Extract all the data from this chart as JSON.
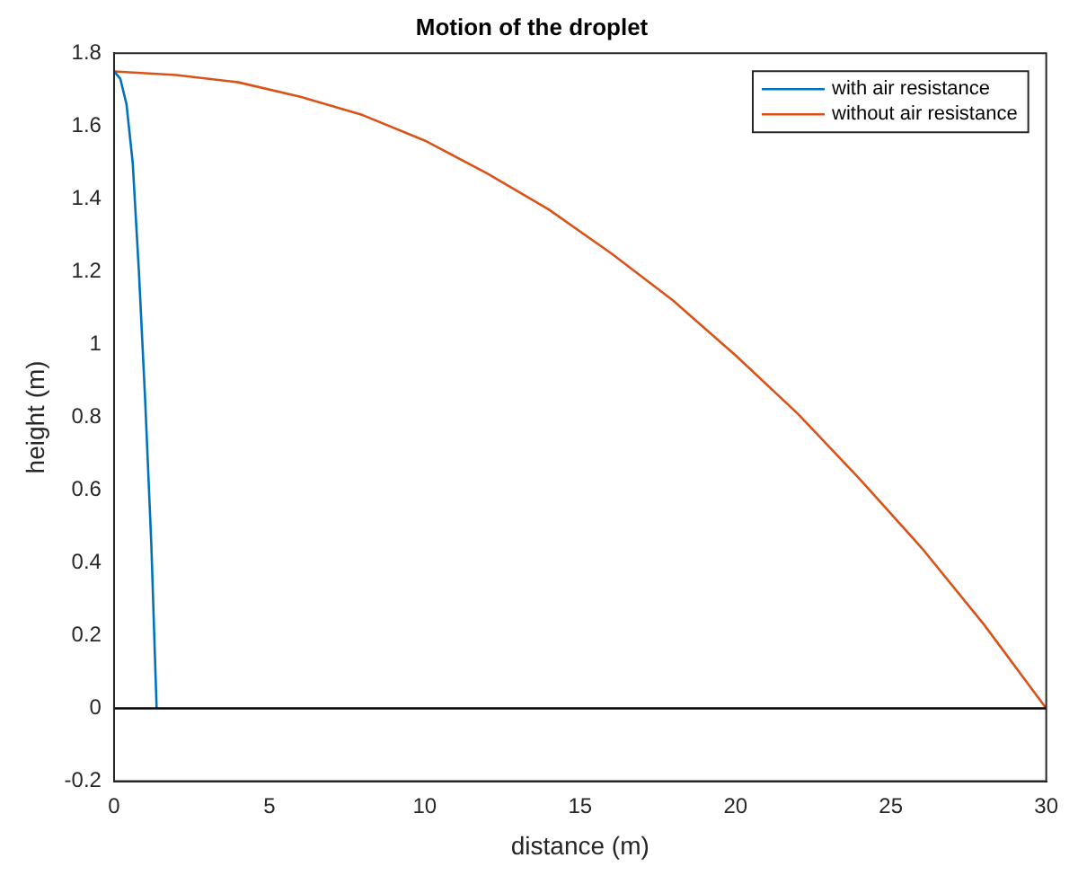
{
  "chart_data": {
    "type": "line",
    "title": "Motion of the droplet",
    "xlabel": "distance (m)",
    "ylabel": "height (m)",
    "xlim": [
      0,
      30
    ],
    "xticks": [
      0,
      5,
      10,
      15,
      20,
      25,
      30
    ],
    "ylim": [
      -0.2,
      1.8
    ],
    "yticks": [
      -0.2,
      0,
      0.2,
      0.4,
      0.6,
      0.8,
      1,
      1.2,
      1.4,
      1.6,
      1.8
    ],
    "grid": false,
    "legend": "top right",
    "marker": "none",
    "line_style": "solid",
    "ref_lines": [
      {
        "axis": "y",
        "value": 0,
        "color": "#000000"
      }
    ],
    "series": [
      {
        "name": "with air resistance",
        "color": "#0072bd",
        "x": [
          0,
          0.2,
          0.4,
          0.6,
          0.8,
          1.0,
          1.2,
          1.37
        ],
        "values": [
          1.75,
          1.73,
          1.66,
          1.5,
          1.2,
          0.85,
          0.45,
          0
        ]
      },
      {
        "name": "without air resistance",
        "color": "#d95319",
        "x": [
          0,
          2,
          4,
          6,
          8,
          10,
          12,
          14,
          16,
          18,
          20,
          22,
          24,
          26,
          28,
          30
        ],
        "values": [
          1.75,
          1.74,
          1.72,
          1.68,
          1.63,
          1.56,
          1.47,
          1.37,
          1.25,
          1.12,
          0.97,
          0.81,
          0.63,
          0.44,
          0.23,
          0
        ]
      }
    ]
  }
}
